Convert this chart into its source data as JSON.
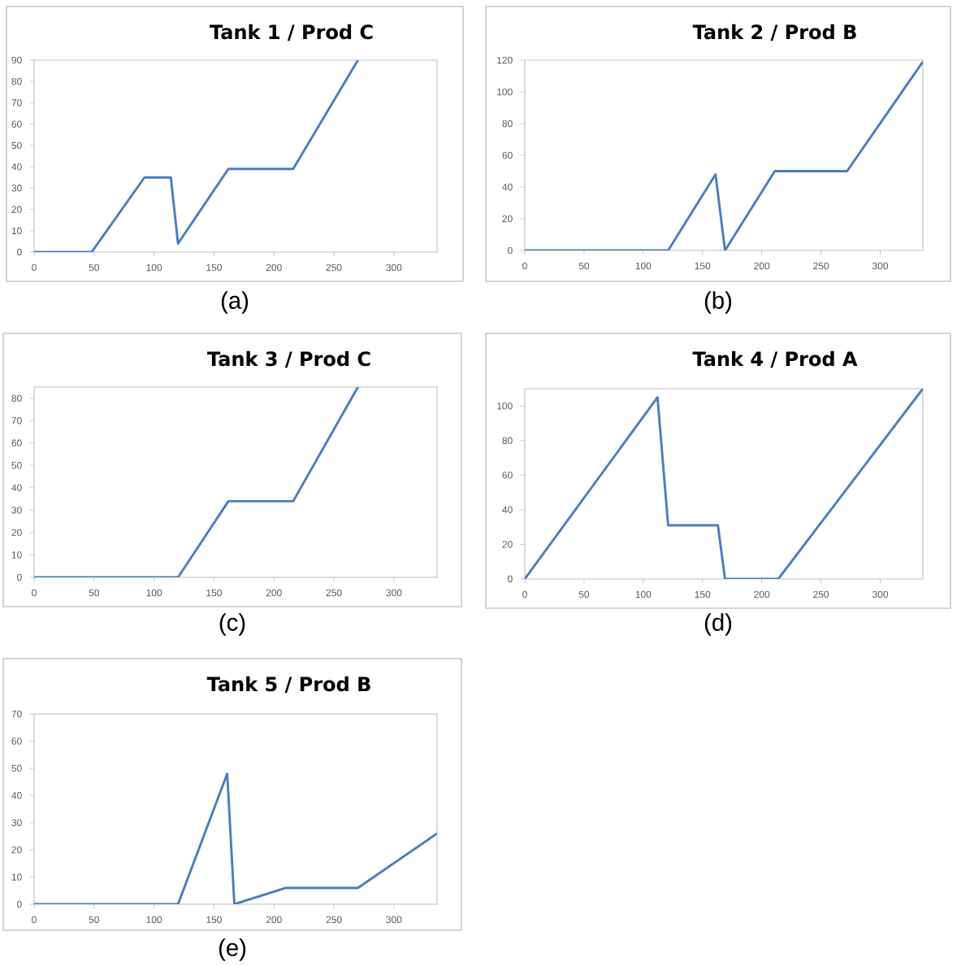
{
  "chart_data": [
    {
      "type": "line",
      "title": "Tank 1  / Prod C",
      "annotations": [
        "(a)"
      ],
      "x": [
        0,
        48,
        92,
        114,
        120,
        162,
        216,
        270
      ],
      "series": [
        {
          "color": "#4a7ebb",
          "values": [
            0,
            0,
            35,
            35,
            4,
            39,
            39,
            90
          ]
        }
      ],
      "xlim": [
        0,
        336
      ],
      "xticks": [
        0,
        50,
        100,
        150,
        200,
        250,
        300
      ],
      "ylim": [
        0,
        90
      ],
      "yticks": [
        0,
        10,
        20,
        30,
        40,
        50,
        60,
        70,
        80,
        90
      ]
    },
    {
      "type": "line",
      "title": "Tank 2 / Prod B",
      "annotations": [
        "(b)"
      ],
      "x": [
        0,
        121,
        161,
        169,
        211,
        272,
        336
      ],
      "series": [
        {
          "color": "#4a7ebb",
          "values": [
            0,
            0,
            48,
            0,
            50,
            50,
            119
          ]
        }
      ],
      "xlim": [
        0,
        336
      ],
      "xticks": [
        0,
        50,
        100,
        150,
        200,
        250,
        300
      ],
      "ylim": [
        0,
        120
      ],
      "yticks": [
        0,
        20,
        40,
        60,
        80,
        100,
        120
      ]
    },
    {
      "type": "line",
      "title": "Tank 3  / Prod C",
      "annotations": [
        "(c)"
      ],
      "x": [
        0,
        120,
        162,
        216,
        270
      ],
      "series": [
        {
          "color": "#4a7ebb",
          "values": [
            0,
            0,
            34,
            34,
            85
          ]
        }
      ],
      "xlim": [
        0,
        336
      ],
      "xticks": [
        0,
        50,
        100,
        150,
        200,
        250,
        300
      ],
      "ylim": [
        0,
        85
      ],
      "yticks": [
        0,
        10,
        20,
        30,
        40,
        50,
        60,
        70,
        80
      ]
    },
    {
      "type": "line",
      "title": "Tank 4  / Prod A",
      "annotations": [
        "(d)"
      ],
      "x": [
        0,
        112,
        121,
        163,
        169,
        214,
        336
      ],
      "series": [
        {
          "color": "#4a7ebb",
          "values": [
            0,
            105,
            31,
            31,
            0,
            0,
            110
          ]
        }
      ],
      "xlim": [
        0,
        336
      ],
      "xticks": [
        0,
        50,
        100,
        150,
        200,
        250,
        300
      ],
      "ylim": [
        0,
        110
      ],
      "yticks": [
        0,
        20,
        40,
        60,
        80,
        100
      ]
    },
    {
      "type": "line",
      "title": "Tank 5  / Prod B",
      "annotations": [
        "(e)"
      ],
      "x": [
        0,
        120,
        161,
        167,
        210,
        270,
        336
      ],
      "series": [
        {
          "color": "#4a7ebb",
          "values": [
            0,
            0,
            48,
            0,
            6,
            6,
            26
          ]
        }
      ],
      "xlim": [
        0,
        336
      ],
      "xticks": [
        0,
        50,
        100,
        150,
        200,
        250,
        300
      ],
      "ylim": [
        0,
        70
      ],
      "yticks": [
        0,
        10,
        20,
        30,
        40,
        50,
        60,
        70
      ]
    }
  ]
}
